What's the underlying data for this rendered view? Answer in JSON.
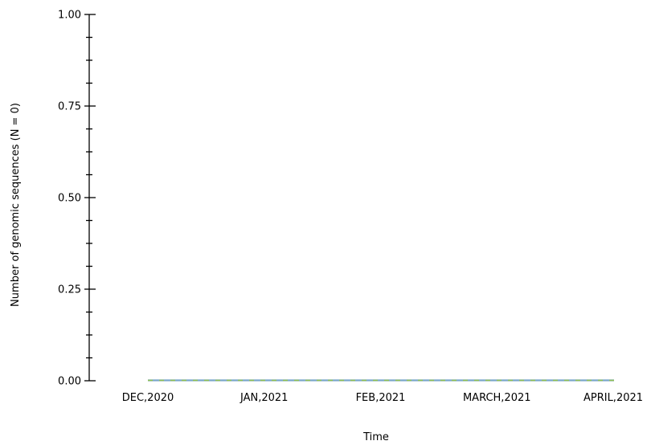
{
  "chart_data": {
    "type": "line",
    "title": "",
    "xlabel": "Time",
    "ylabel": "Number of genomic sequences (N = 0)",
    "ylim": [
      0,
      1
    ],
    "yticks": [
      "0.00",
      "0.25",
      "0.50",
      "0.75",
      "1.00"
    ],
    "ytick_values": [
      0,
      0.25,
      0.5,
      0.75,
      1.0
    ],
    "minor_ticks_per_major": 3,
    "x": [
      "DEC,2020",
      "JAN,2021",
      "FEB,2021",
      "MARCH,2021",
      "APRIL,2021"
    ],
    "series": [
      {
        "color": "#7aa6c9",
        "values": [
          0,
          0,
          0,
          0,
          0
        ]
      },
      {
        "color": "#8fbf4f",
        "dashed": true,
        "values": [
          0,
          0,
          0,
          0,
          0
        ]
      }
    ],
    "grid": false,
    "legend": "none"
  }
}
